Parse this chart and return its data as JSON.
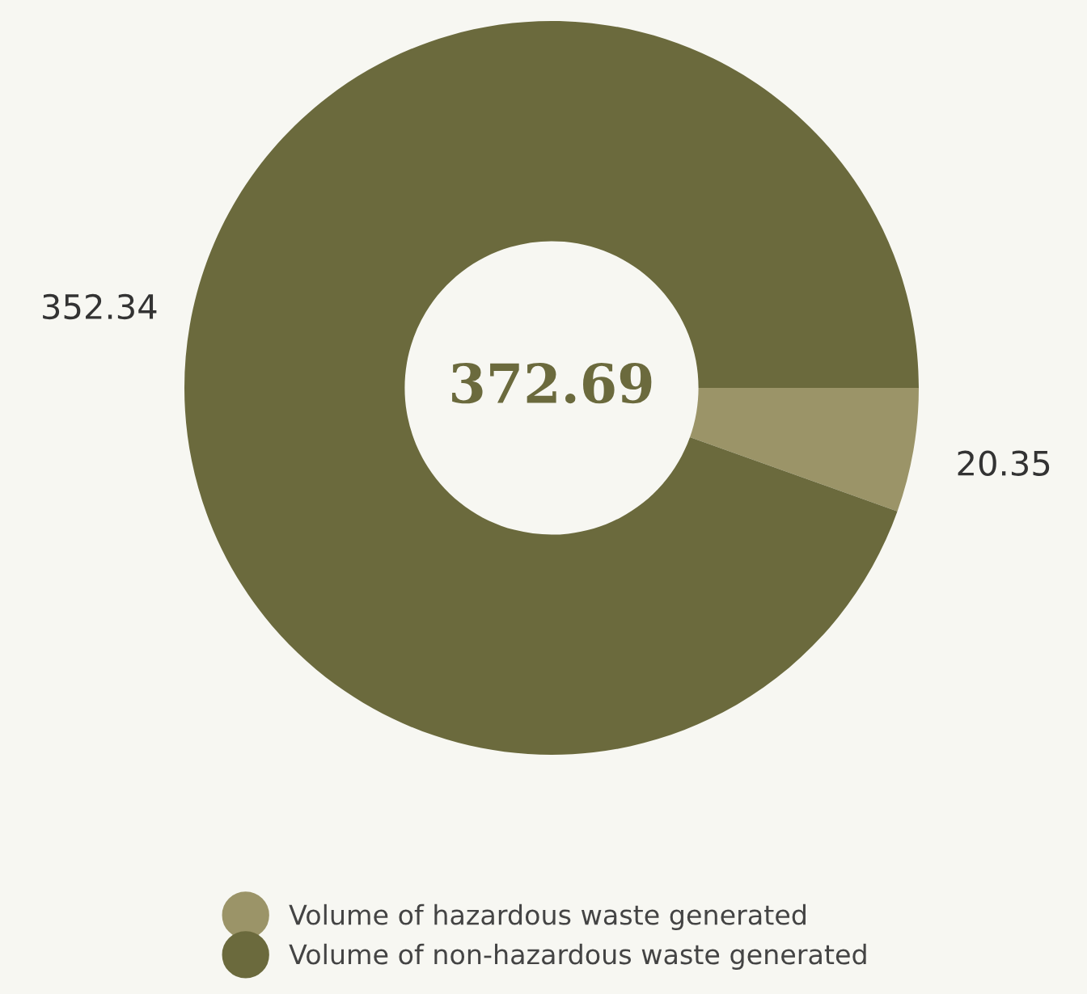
{
  "chart_data": {
    "type": "donut",
    "categories": [
      "Volume of hazardous waste generated",
      "Volume of non-hazardous waste generated"
    ],
    "values": [
      20.35,
      352.34
    ],
    "colors": [
      "#9b9468",
      "#6b6a3d"
    ],
    "data_labels": true,
    "annotations": [
      "372.69"
    ],
    "legend": "bottom"
  }
}
